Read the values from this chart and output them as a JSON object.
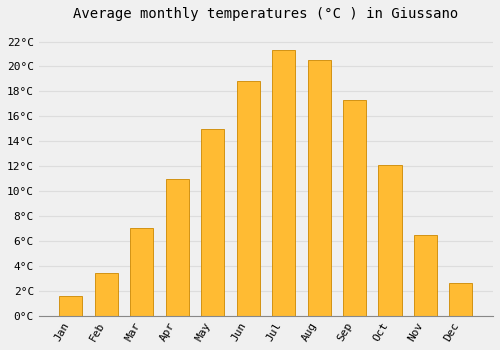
{
  "title": "Average monthly temperatures (°C ) in Giussano",
  "months": [
    "Jan",
    "Feb",
    "Mar",
    "Apr",
    "May",
    "Jun",
    "Jul",
    "Aug",
    "Sep",
    "Oct",
    "Nov",
    "Dec"
  ],
  "values": [
    1.6,
    3.4,
    7.0,
    11.0,
    15.0,
    18.8,
    21.3,
    20.5,
    17.3,
    12.1,
    6.5,
    2.6
  ],
  "bar_color": "#FFBB33",
  "bar_edge_color": "#CC8800",
  "background_color": "#F0F0F0",
  "grid_color": "#DDDDDD",
  "ylim": [
    0,
    23
  ],
  "yticks": [
    0,
    2,
    4,
    6,
    8,
    10,
    12,
    14,
    16,
    18,
    20,
    22
  ],
  "ytick_labels": [
    "0°C",
    "2°C",
    "4°C",
    "6°C",
    "8°C",
    "10°C",
    "12°C",
    "14°C",
    "16°C",
    "18°C",
    "20°C",
    "22°C"
  ],
  "title_fontsize": 10,
  "tick_fontsize": 8,
  "font_family": "monospace",
  "bar_width": 0.65
}
